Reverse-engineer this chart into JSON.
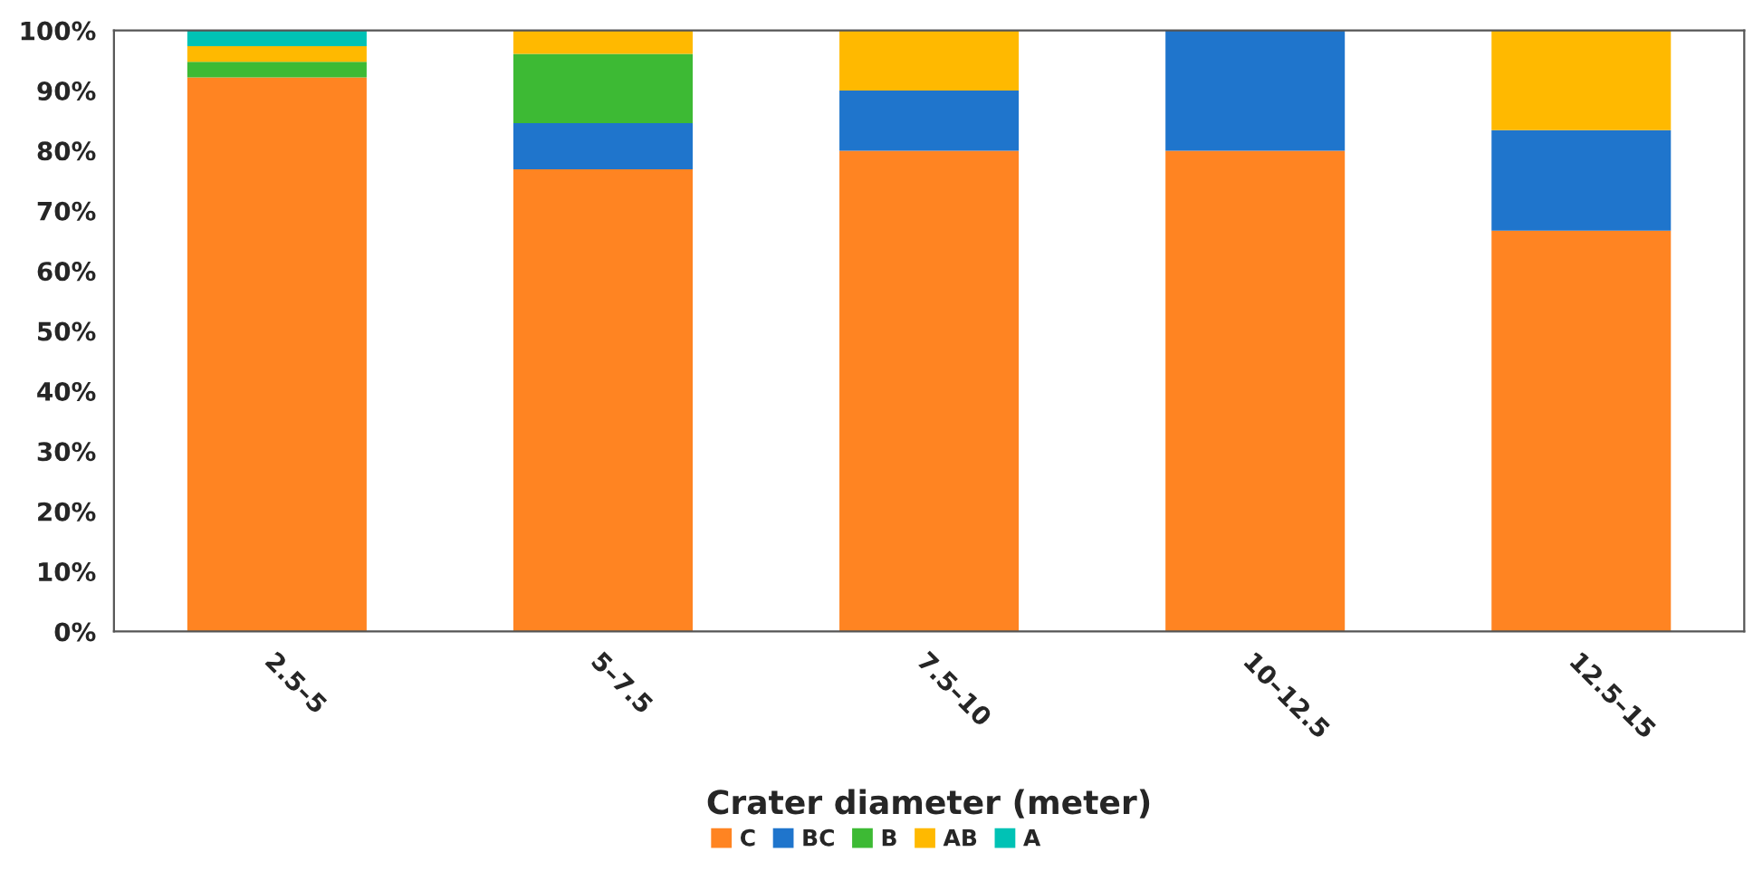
{
  "chart_data": {
    "type": "bar",
    "stacked": true,
    "xlabel": "Crater diameter (meter)",
    "categories": [
      "2.5–5",
      "5–7.5",
      "7.5–10",
      "10–12.5",
      "12.5–15"
    ],
    "series": [
      {
        "name": "C",
        "color": "#ff8422",
        "values": [
          92.2,
          76.9,
          80,
          80,
          66.7
        ]
      },
      {
        "name": "BC",
        "color": "#1f75cc",
        "values": [
          0,
          7.7,
          10,
          20,
          16.7
        ]
      },
      {
        "name": "B",
        "color": "#3dba34",
        "values": [
          2.6,
          11.5,
          0,
          0,
          0
        ]
      },
      {
        "name": "AB",
        "color": "#ffb900",
        "values": [
          2.6,
          3.9,
          10,
          0,
          16.6
        ]
      },
      {
        "name": "A",
        "color": "#00c2b5",
        "values": [
          2.6,
          0,
          0,
          0,
          0
        ]
      }
    ],
    "ylim": [
      0,
      100
    ],
    "yticks": [
      {
        "value": 0,
        "label": "0%"
      },
      {
        "value": 10,
        "label": "10%"
      },
      {
        "value": 20,
        "label": "20%"
      },
      {
        "value": 30,
        "label": "30%"
      },
      {
        "value": 40,
        "label": "40%"
      },
      {
        "value": 50,
        "label": "50%"
      },
      {
        "value": 60,
        "label": "60%"
      },
      {
        "value": 70,
        "label": "70%"
      },
      {
        "value": 80,
        "label": "80%"
      },
      {
        "value": 90,
        "label": "90%"
      },
      {
        "value": 100,
        "label": "100%"
      }
    ],
    "grid": false,
    "legend": "bottom"
  }
}
